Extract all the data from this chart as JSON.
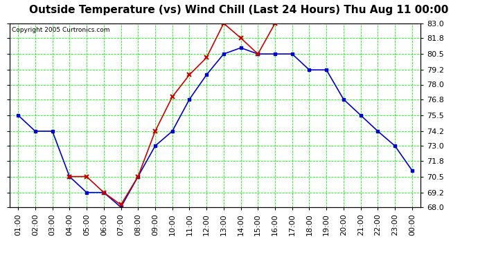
{
  "title": "Outside Temperature (vs) Wind Chill (Last 24 Hours) Thu Aug 11 00:00",
  "copyright": "Copyright 2005 Curtronics.com",
  "x_labels": [
    "01:00",
    "02:00",
    "03:00",
    "04:00",
    "05:00",
    "06:00",
    "07:00",
    "08:00",
    "09:00",
    "10:00",
    "11:00",
    "12:00",
    "13:00",
    "14:00",
    "15:00",
    "16:00",
    "17:00",
    "18:00",
    "19:00",
    "20:00",
    "21:00",
    "22:00",
    "23:00",
    "00:00"
  ],
  "outside_temp": [
    75.5,
    74.2,
    74.2,
    70.5,
    69.2,
    69.2,
    68.0,
    70.5,
    73.0,
    74.2,
    76.8,
    78.8,
    80.5,
    81.0,
    80.5,
    80.5,
    80.5,
    79.2,
    79.2,
    76.8,
    75.5,
    74.2,
    73.0,
    71.0
  ],
  "wind_chill": [
    null,
    null,
    null,
    70.5,
    70.5,
    69.2,
    68.2,
    70.5,
    74.2,
    77.0,
    78.8,
    80.2,
    83.0,
    81.8,
    80.5,
    83.0,
    null,
    null,
    null,
    null,
    null,
    null,
    null,
    null
  ],
  "outside_temp_color": "#0000cc",
  "wind_chill_color": "#cc0000",
  "bg_color": "#ffffff",
  "plot_bg_color": "#ffffff",
  "grid_color": "#00ff00",
  "ylim_min": 68.0,
  "ylim_max": 83.0,
  "yticks": [
    68.0,
    69.2,
    70.5,
    71.8,
    73.0,
    74.2,
    75.5,
    76.8,
    78.0,
    79.2,
    80.5,
    81.8,
    83.0
  ],
  "title_fontsize": 11,
  "tick_fontsize": 8
}
